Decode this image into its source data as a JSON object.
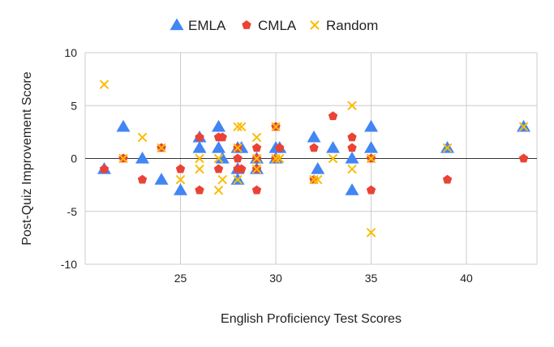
{
  "chart_data": {
    "type": "scatter",
    "title": "",
    "xlabel": "English Proficiency Test Scores",
    "ylabel": "Post-Quiz Improvement Score",
    "xlim": [
      20,
      43.7
    ],
    "ylim": [
      -10,
      10
    ],
    "xticks": [
      25,
      30,
      35,
      40
    ],
    "yticks": [
      10,
      5,
      0,
      -5,
      -10
    ],
    "grid": true,
    "legend_position": "top",
    "series": [
      {
        "name": "EMLA",
        "marker": "triangle",
        "color": "#4285F4",
        "points": [
          [
            21,
            -1
          ],
          [
            22,
            3
          ],
          [
            23,
            0
          ],
          [
            24,
            -2
          ],
          [
            25,
            -3
          ],
          [
            26,
            1
          ],
          [
            26,
            2
          ],
          [
            27,
            3
          ],
          [
            27,
            1
          ],
          [
            27.2,
            0
          ],
          [
            28,
            1
          ],
          [
            28.2,
            1
          ],
          [
            28,
            -1
          ],
          [
            28,
            -2
          ],
          [
            29,
            0
          ],
          [
            29,
            -1
          ],
          [
            30,
            1
          ],
          [
            30,
            0
          ],
          [
            30.2,
            1
          ],
          [
            32,
            2
          ],
          [
            32.2,
            -1
          ],
          [
            33,
            1
          ],
          [
            34,
            0
          ],
          [
            34,
            -3
          ],
          [
            35,
            3
          ],
          [
            35,
            1
          ],
          [
            39,
            1
          ],
          [
            43,
            3
          ]
        ]
      },
      {
        "name": "CMLA",
        "marker": "pentagon",
        "color": "#EA4335",
        "points": [
          [
            21,
            -1
          ],
          [
            22,
            0
          ],
          [
            23,
            -2
          ],
          [
            24,
            1
          ],
          [
            25,
            -1
          ],
          [
            26,
            2
          ],
          [
            26,
            -3
          ],
          [
            27,
            2
          ],
          [
            27.2,
            2
          ],
          [
            27,
            -1
          ],
          [
            28,
            1
          ],
          [
            28,
            0
          ],
          [
            28,
            -1
          ],
          [
            28.2,
            -1
          ],
          [
            29,
            1
          ],
          [
            29,
            -1
          ],
          [
            29,
            -3
          ],
          [
            29,
            0
          ],
          [
            30,
            3
          ],
          [
            30,
            0
          ],
          [
            30.2,
            1
          ],
          [
            32,
            1
          ],
          [
            32,
            -2
          ],
          [
            33,
            4
          ],
          [
            34,
            2
          ],
          [
            34,
            1
          ],
          [
            35,
            0
          ],
          [
            35,
            -3
          ],
          [
            39,
            -2
          ],
          [
            43,
            0
          ]
        ]
      },
      {
        "name": "Random",
        "marker": "x",
        "color": "#FBBC04",
        "points": [
          [
            21,
            7
          ],
          [
            22,
            0
          ],
          [
            23,
            2
          ],
          [
            24,
            1
          ],
          [
            25,
            -2
          ],
          [
            26,
            0
          ],
          [
            26,
            -1
          ],
          [
            27,
            0
          ],
          [
            27,
            -3
          ],
          [
            27.2,
            -2
          ],
          [
            28,
            3
          ],
          [
            28.2,
            3
          ],
          [
            28,
            1
          ],
          [
            28,
            -2
          ],
          [
            29,
            2
          ],
          [
            29,
            0
          ],
          [
            29,
            -1
          ],
          [
            30,
            3
          ],
          [
            30,
            0
          ],
          [
            30.2,
            0
          ],
          [
            32,
            -2
          ],
          [
            32.2,
            -2
          ],
          [
            33,
            0
          ],
          [
            34,
            5
          ],
          [
            34,
            -1
          ],
          [
            35,
            0
          ],
          [
            35,
            -7
          ],
          [
            39,
            1
          ],
          [
            43,
            3
          ]
        ]
      }
    ]
  }
}
